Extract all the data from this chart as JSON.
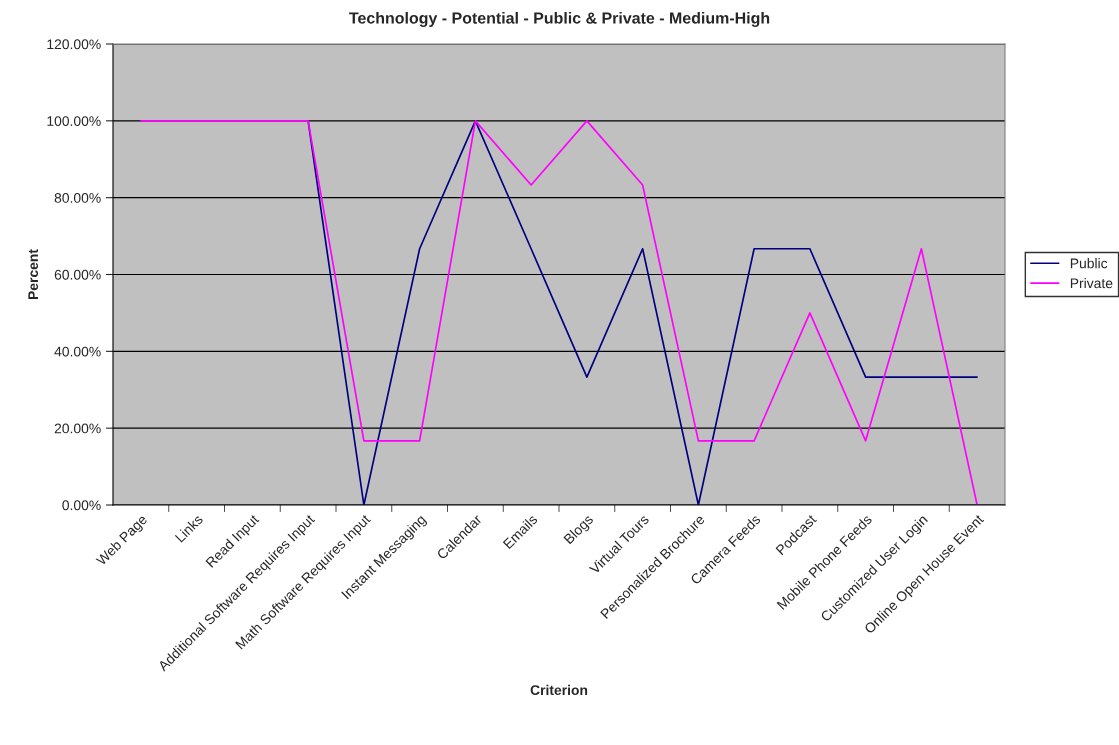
{
  "chart_data": {
    "type": "line",
    "title": "Technology - Potential - Public & Private - Medium-High",
    "xlabel": "Criterion",
    "ylabel": "Percent",
    "categories": [
      "Web Page",
      "Links",
      "Read Input",
      "Additional Software Requires Input",
      "Math Software Requires Input",
      "Instant Messaging",
      "Calendar",
      "Emails",
      "Blogs",
      "Virtual Tours",
      "Personalized Brochure",
      "Camera Feeds",
      "Podcast",
      "Mobile Phone Feeds",
      "Customized User Login",
      "Online Open House Event"
    ],
    "series": [
      {
        "name": "Public",
        "color": "#000080",
        "values": [
          null,
          null,
          null,
          100,
          0,
          66.7,
          100,
          66.7,
          33.3,
          66.7,
          0,
          66.7,
          66.7,
          33.3,
          33.3,
          33.3
        ]
      },
      {
        "name": "Private",
        "color": "#ff00ff",
        "values": [
          100,
          100,
          100,
          100,
          16.7,
          16.7,
          100,
          83.3,
          100,
          83.3,
          16.7,
          16.7,
          50,
          16.7,
          66.7,
          0
        ]
      }
    ],
    "ylim": [
      0,
      120
    ],
    "yticks": [
      {
        "value": 0,
        "label": "0.00%"
      },
      {
        "value": 20,
        "label": "20.00%"
      },
      {
        "value": 40,
        "label": "40.00%"
      },
      {
        "value": 60,
        "label": "60.00%"
      },
      {
        "value": 80,
        "label": "80.00%"
      },
      {
        "value": 100,
        "label": "100.00%"
      },
      {
        "value": 120,
        "label": "120.00%"
      }
    ],
    "grid": "y",
    "legend": "right",
    "marker": "none",
    "line_style": "solid"
  }
}
